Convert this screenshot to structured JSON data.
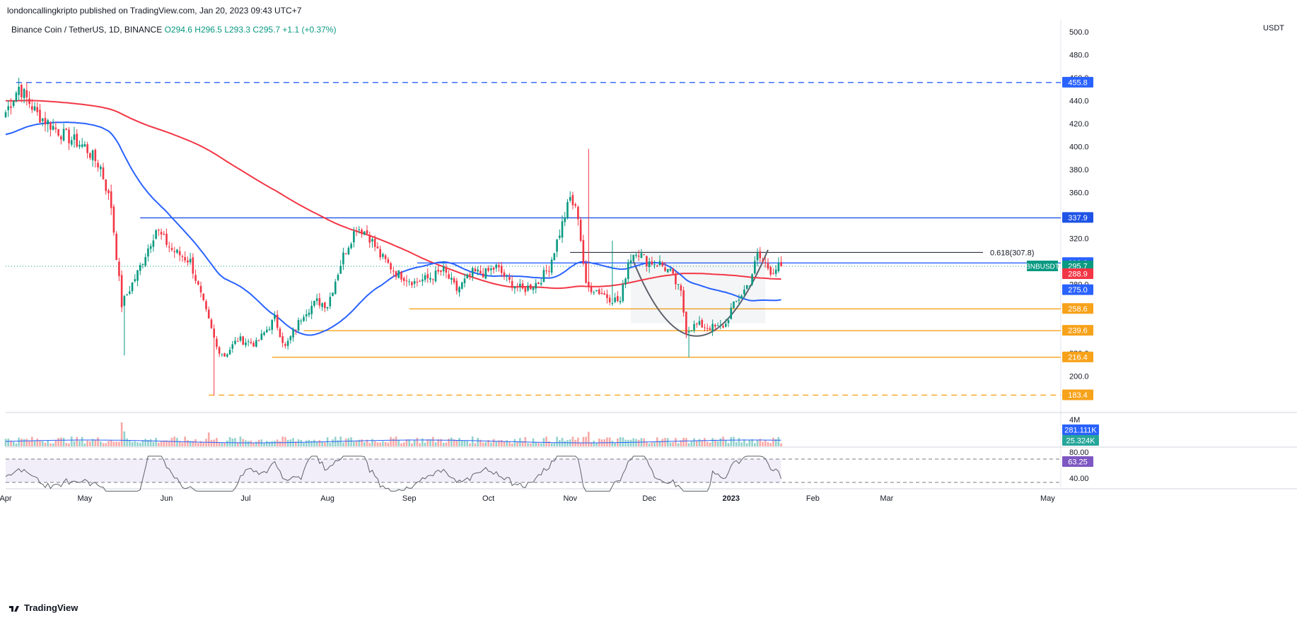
{
  "header": {
    "publish_line": "londoncallingkripto published on TradingView.com, Jan 20, 2023 09:43 UTC+7",
    "symbol_line": "Binance Coin / TetherUS, 1D, BINANCE",
    "open": "O294.6",
    "high": "H296.5",
    "low": "L293.3",
    "close": "C295.7",
    "change": "+1.1 (+0.37%)",
    "currency": "USDT"
  },
  "brand": "TradingView",
  "chart_data": {
    "type": "candlestick",
    "symbol": "BNBUSDT",
    "ylim": [
      180,
      505
    ],
    "y_ticks": [
      200,
      220,
      280,
      300,
      320,
      360,
      380,
      400,
      420,
      440,
      460,
      480,
      500
    ],
    "y_tick_labels": [
      "200.0",
      "220.0",
      "280.0",
      "300.0",
      "320.0",
      "360.0",
      "380.0",
      "400.0",
      "420.0",
      "440.0",
      "460.0",
      "480.0",
      "500.0"
    ],
    "x_labels": [
      "Apr",
      "May",
      "Jun",
      "Jul",
      "Aug",
      "Sep",
      "Oct",
      "Nov",
      "Dec",
      "2023",
      "Feb",
      "Mar",
      "May"
    ],
    "x_label_day": [
      0,
      30,
      61,
      91,
      122,
      153,
      183,
      214,
      244,
      275,
      306,
      334,
      395
    ],
    "date_start": "2022-04-01",
    "last_day": 294,
    "keyframes": [
      [
        0,
        430
      ],
      [
        5,
        452
      ],
      [
        12,
        428
      ],
      [
        22,
        410
      ],
      [
        30,
        400
      ],
      [
        36,
        382
      ],
      [
        40,
        348
      ],
      [
        44,
        262
      ],
      [
        50,
        290
      ],
      [
        57,
        328
      ],
      [
        63,
        310
      ],
      [
        70,
        300
      ],
      [
        76,
        255
      ],
      [
        80,
        225
      ],
      [
        83,
        218
      ],
      [
        88,
        232
      ],
      [
        95,
        228
      ],
      [
        102,
        250
      ],
      [
        106,
        225
      ],
      [
        113,
        255
      ],
      [
        118,
        265
      ],
      [
        122,
        262
      ],
      [
        128,
        305
      ],
      [
        133,
        330
      ],
      [
        137,
        325
      ],
      [
        142,
        305
      ],
      [
        148,
        290
      ],
      [
        155,
        282
      ],
      [
        160,
        285
      ],
      [
        166,
        292
      ],
      [
        171,
        275
      ],
      [
        177,
        290
      ],
      [
        182,
        290
      ],
      [
        186,
        295
      ],
      [
        191,
        282
      ],
      [
        196,
        275
      ],
      [
        202,
        282
      ],
      [
        206,
        295
      ],
      [
        210,
        325
      ],
      [
        214,
        355
      ],
      [
        217,
        340
      ],
      [
        220,
        278
      ],
      [
        224,
        275
      ],
      [
        229,
        268
      ],
      [
        233,
        265
      ],
      [
        236,
        300
      ],
      [
        239,
        310
      ],
      [
        243,
        300
      ],
      [
        248,
        298
      ],
      [
        252,
        290
      ],
      [
        256,
        272
      ],
      [
        258,
        240
      ],
      [
        262,
        245
      ],
      [
        266,
        243
      ],
      [
        270,
        242
      ],
      [
        273,
        245
      ],
      [
        275,
        258
      ],
      [
        278,
        268
      ],
      [
        282,
        282
      ],
      [
        285,
        305
      ],
      [
        287,
        300
      ],
      [
        290,
        292
      ],
      [
        294,
        295.7
      ]
    ],
    "volume_labels": [
      "4M"
    ],
    "volume_badges": [
      "281.111K",
      "25.324K"
    ],
    "rsi": {
      "upper": "80.00",
      "lower": "40.00",
      "value": "63.25"
    },
    "levels": [
      {
        "price": 455.8,
        "label": "455.8",
        "color": "#2962ff",
        "style": "dashed",
        "from_day": 4
      },
      {
        "price": 337.9,
        "label": "337.9",
        "color": "#1e53e5",
        "style": "solid",
        "from_day": 51
      },
      {
        "price": 298.6,
        "label": "298.6",
        "color": "#2962ff",
        "style": "solid",
        "from_day": 156
      },
      {
        "price": 258.6,
        "label": "258.6",
        "color": "#f7a21b",
        "style": "solid",
        "from_day": 153
      },
      {
        "price": 239.6,
        "label": "239.6",
        "color": "#f7a21b",
        "style": "solid",
        "from_day": 113
      },
      {
        "price": 216.4,
        "label": "216.4",
        "color": "#f7a21b",
        "style": "solid",
        "from_day": 101
      },
      {
        "price": 183.4,
        "label": "183.4",
        "color": "#f7a21b",
        "style": "dashed",
        "from_day": 77
      }
    ],
    "price_badges": [
      {
        "text": "295.7",
        "bg": "#089981",
        "price": 295.7
      },
      {
        "text": "288.9",
        "bg": "#f23645",
        "price": 288.9
      },
      {
        "text": "275.0",
        "bg": "#2962ff",
        "price": 275.0
      }
    ],
    "symbol_badge": "BNBUSDT",
    "fib_label": "0.618(307.8)",
    "fib_price": 307.8,
    "ma_colors": {
      "ma200": "#f23645",
      "ma50": "#2962ff"
    }
  }
}
